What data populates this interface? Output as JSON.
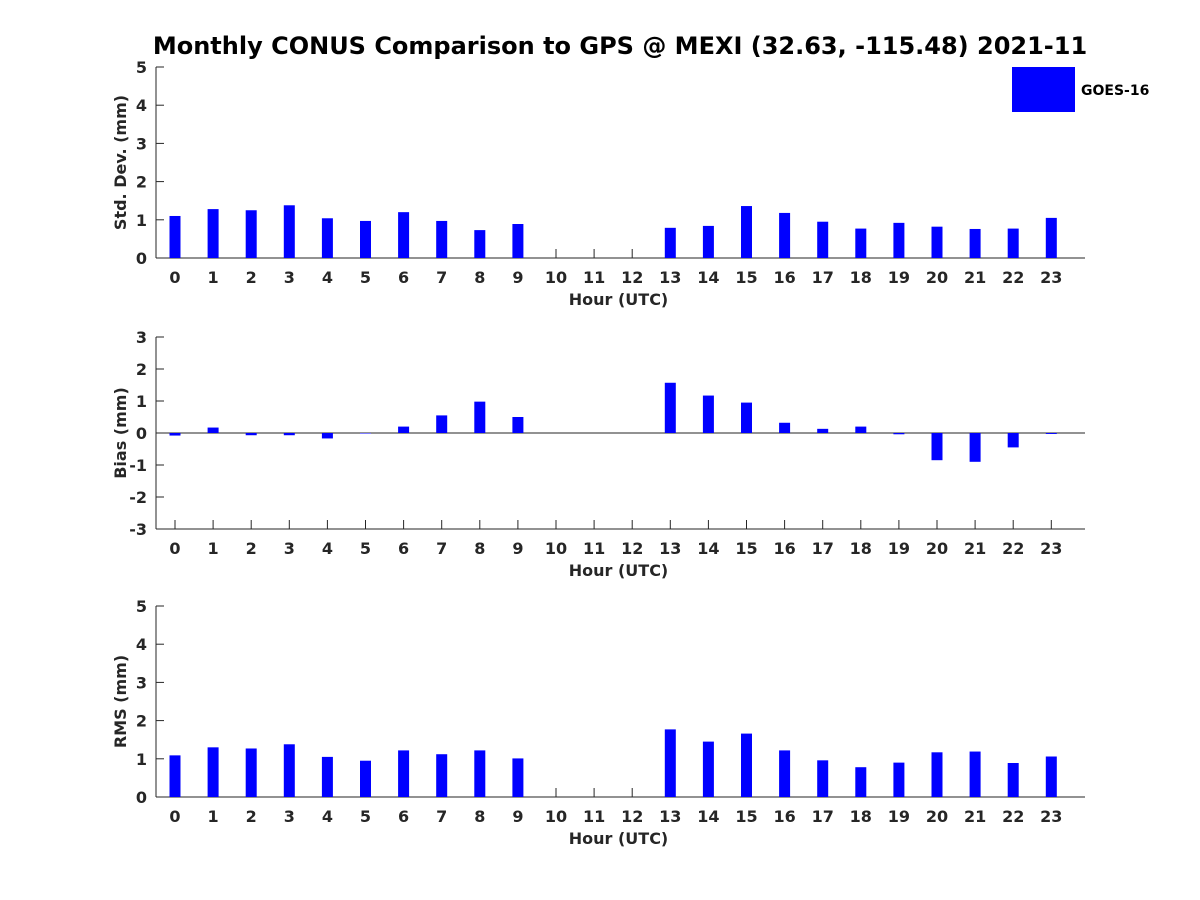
{
  "title": "Monthly CONUS Comparison to GPS @ MEXI (32.63, -115.48) 2021-11",
  "legend": {
    "label": "GOES-16",
    "color": "#0000ff"
  },
  "chart_data": [
    {
      "type": "bar",
      "name": "std-dev",
      "xlabel": "Hour (UTC)",
      "ylabel": "Std. Dev. (mm)",
      "ylim": [
        0,
        5
      ],
      "yticks": [
        0,
        1,
        2,
        3,
        4,
        5
      ],
      "categories": [
        "0",
        "1",
        "2",
        "3",
        "4",
        "5",
        "6",
        "7",
        "8",
        "9",
        "10",
        "11",
        "12",
        "13",
        "14",
        "15",
        "16",
        "17",
        "18",
        "19",
        "20",
        "21",
        "22",
        "23"
      ],
      "series": [
        {
          "name": "GOES-16",
          "values": [
            1.1,
            1.28,
            1.25,
            1.38,
            1.04,
            0.97,
            1.2,
            0.97,
            0.73,
            0.89,
            null,
            null,
            null,
            0.79,
            0.84,
            1.36,
            1.18,
            0.95,
            0.77,
            0.92,
            0.82,
            0.76,
            0.77,
            1.05
          ]
        }
      ]
    },
    {
      "type": "bar",
      "name": "bias",
      "xlabel": "Hour (UTC)",
      "ylabel": "Bias (mm)",
      "ylim": [
        -3,
        3
      ],
      "yticks": [
        -3,
        -2,
        -1,
        0,
        1,
        2,
        3
      ],
      "categories": [
        "0",
        "1",
        "2",
        "3",
        "4",
        "5",
        "6",
        "7",
        "8",
        "9",
        "10",
        "11",
        "12",
        "13",
        "14",
        "15",
        "16",
        "17",
        "18",
        "19",
        "20",
        "21",
        "22",
        "23"
      ],
      "series": [
        {
          "name": "GOES-16",
          "values": [
            -0.08,
            0.17,
            -0.07,
            -0.07,
            -0.17,
            0.0,
            0.2,
            0.55,
            0.98,
            0.5,
            null,
            null,
            null,
            1.57,
            1.17,
            0.95,
            0.32,
            0.13,
            0.2,
            -0.04,
            -0.85,
            -0.9,
            -0.45,
            -0.03
          ]
        }
      ]
    },
    {
      "type": "bar",
      "name": "rms",
      "xlabel": "Hour (UTC)",
      "ylabel": "RMS (mm)",
      "ylim": [
        0,
        5
      ],
      "yticks": [
        0,
        1,
        2,
        3,
        4,
        5
      ],
      "categories": [
        "0",
        "1",
        "2",
        "3",
        "4",
        "5",
        "6",
        "7",
        "8",
        "9",
        "10",
        "11",
        "12",
        "13",
        "14",
        "15",
        "16",
        "17",
        "18",
        "19",
        "20",
        "21",
        "22",
        "23"
      ],
      "series": [
        {
          "name": "GOES-16",
          "values": [
            1.09,
            1.3,
            1.27,
            1.38,
            1.05,
            0.95,
            1.22,
            1.12,
            1.22,
            1.01,
            null,
            null,
            null,
            1.77,
            1.45,
            1.66,
            1.22,
            0.96,
            0.78,
            0.9,
            1.17,
            1.19,
            0.89,
            1.06
          ]
        }
      ]
    }
  ]
}
